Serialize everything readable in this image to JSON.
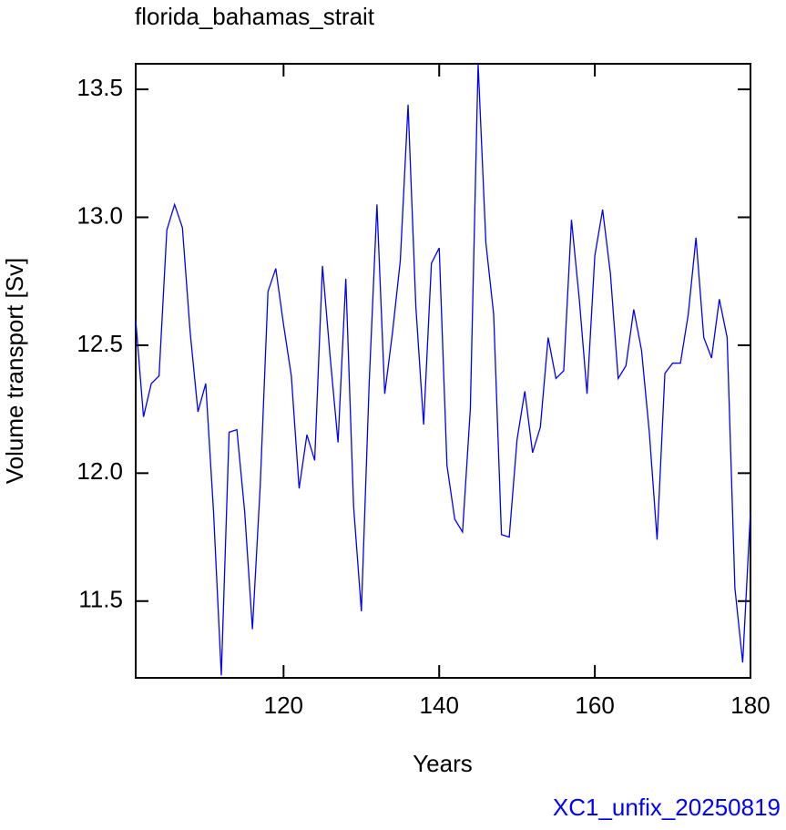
{
  "chart_data": {
    "type": "line",
    "title": "florida_bahamas_strait",
    "x_label": "Years",
    "y_label": "Volume transport [Sv]",
    "annotation": "XC1_unfix_20250819",
    "xlim": [
      101,
      180
    ],
    "ylim": [
      11.2,
      13.6
    ],
    "xticks": [
      120,
      140,
      160,
      180
    ],
    "yticks": [
      11.5,
      {
        "value": 12,
        "label": "12.0"
      },
      12.5,
      {
        "value": 13,
        "label": "13.0"
      },
      13.5
    ],
    "x": [
      101,
      102,
      103,
      104,
      105,
      106,
      107,
      108,
      109,
      110,
      111,
      112,
      113,
      114,
      115,
      116,
      117,
      118,
      119,
      120,
      121,
      122,
      123,
      124,
      125,
      126,
      127,
      128,
      129,
      130,
      131,
      132,
      133,
      134,
      135,
      136,
      137,
      138,
      139,
      140,
      141,
      142,
      143,
      144,
      145,
      146,
      147,
      148,
      149,
      150,
      151,
      152,
      153,
      154,
      155,
      156,
      157,
      158,
      159,
      160,
      161,
      162,
      163,
      164,
      165,
      166,
      167,
      168,
      169,
      170,
      171,
      172,
      173,
      174,
      175,
      176,
      177,
      178,
      179,
      180
    ],
    "series": [
      {
        "color": "#0000ff",
        "values": [
          12.6,
          12.22,
          12.35,
          12.38,
          12.95,
          13.05,
          12.96,
          12.55,
          12.24,
          12.35,
          11.85,
          11.21,
          12.16,
          12.17,
          11.85,
          11.39,
          11.95,
          12.71,
          12.8,
          12.58,
          12.38,
          11.94,
          12.15,
          12.05,
          12.81,
          12.45,
          12.12,
          12.76,
          11.87,
          11.46,
          12.35,
          13.05,
          12.31,
          12.55,
          12.83,
          13.44,
          12.65,
          12.19,
          12.82,
          12.88,
          12.03,
          11.82,
          11.77,
          12.25,
          13.6,
          12.9,
          12.62,
          11.76,
          11.75,
          12.13,
          12.32,
          12.08,
          12.18,
          12.53,
          12.37,
          12.4,
          12.99,
          12.68,
          12.31,
          12.85,
          13.03,
          12.78,
          12.37,
          12.42,
          12.64,
          12.48,
          12.16,
          11.74,
          12.39,
          12.43,
          12.43,
          12.62,
          12.92,
          12.53,
          12.45,
          12.68,
          12.53,
          11.55,
          11.26,
          11.85
        ]
      }
    ]
  }
}
